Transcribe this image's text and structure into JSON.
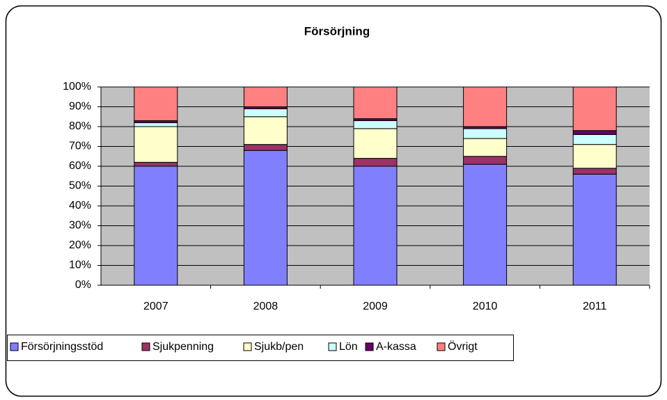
{
  "chart_data": {
    "type": "bar",
    "stacked": true,
    "title": "Försörjning",
    "categories": [
      "2007",
      "2008",
      "2009",
      "2010",
      "2011"
    ],
    "series": [
      {
        "name": "Försörjningsstöd",
        "color": "#8080ff",
        "values": [
          60,
          68,
          60,
          61,
          56
        ]
      },
      {
        "name": "Sjukpenning",
        "color": "#993366",
        "values": [
          2,
          3,
          4,
          4,
          3
        ]
      },
      {
        "name": "Sjukb/pen",
        "color": "#ffffcc",
        "values": [
          18,
          14,
          15,
          9,
          12
        ]
      },
      {
        "name": "Lön",
        "color": "#ccffff",
        "values": [
          2,
          4,
          4,
          5,
          5
        ]
      },
      {
        "name": "A-kassa",
        "color": "#660066",
        "values": [
          1,
          1,
          1,
          1,
          2
        ]
      },
      {
        "name": "Övrigt",
        "color": "#ff8080",
        "values": [
          17,
          10,
          16,
          20,
          22
        ]
      }
    ],
    "ylim": [
      0,
      100
    ],
    "yticks": [
      {
        "value": 0,
        "label": "0%"
      },
      {
        "value": 10,
        "label": "10%"
      },
      {
        "value": 20,
        "label": "20%"
      },
      {
        "value": 30,
        "label": "30%"
      },
      {
        "value": 40,
        "label": "40%"
      },
      {
        "value": 50,
        "label": "50%"
      },
      {
        "value": 60,
        "label": "60%"
      },
      {
        "value": 70,
        "label": "70%"
      },
      {
        "value": 80,
        "label": "80%"
      },
      {
        "value": 90,
        "label": "90%"
      },
      {
        "value": 100,
        "label": "100%"
      }
    ],
    "grid": true,
    "legend": "bottom"
  }
}
